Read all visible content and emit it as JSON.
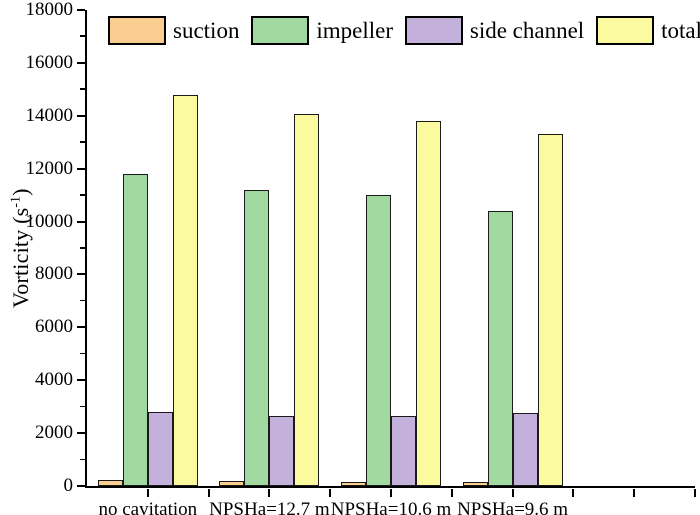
{
  "figure": {
    "background": "#ffffff"
  },
  "chart_data": {
    "type": "bar",
    "title": "",
    "xlabel": "",
    "ylabel": "Vorticity (s-1)",
    "ylabel_parts": {
      "prefix": "Vorticity (s",
      "sup": "-1",
      "suffix": ")"
    },
    "categories": [
      "no cavitation",
      "NPSHa=12.7 m",
      "NPSHa=10.6 m",
      "NPSHa=9.6 m"
    ],
    "series": [
      {
        "name": "suction",
        "color": "#FACD91",
        "values": [
          220,
          200,
          170,
          160
        ]
      },
      {
        "name": "impeller",
        "color": "#A2D9A1",
        "values": [
          11800,
          11200,
          11000,
          10400
        ]
      },
      {
        "name": "side channel",
        "color": "#C3B1DB",
        "values": [
          2800,
          2650,
          2660,
          2760
        ]
      },
      {
        "name": "total",
        "color": "#FCFA9F",
        "values": [
          14800,
          14050,
          13800,
          13300
        ]
      }
    ],
    "ylim": [
      0,
      18000
    ],
    "y_ticks": [
      0,
      2000,
      4000,
      6000,
      8000,
      10000,
      12000,
      14000,
      16000,
      18000
    ],
    "y_minor_step": 1000,
    "x_slots": 5,
    "legend_position": "top-inside",
    "grid": false,
    "axis_color": "#000000",
    "bar_border_color": "#1a1a1a"
  }
}
